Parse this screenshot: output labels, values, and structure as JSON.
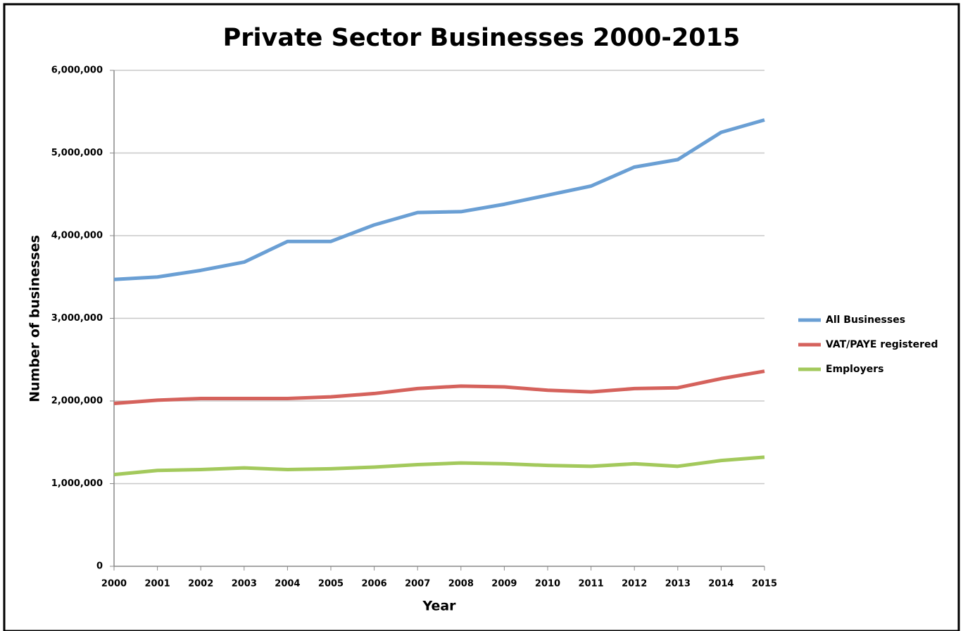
{
  "chart_data": {
    "type": "line",
    "title": "Private Sector Businesses 2000-2015",
    "x_label": "Year",
    "y_label": "Number of businesses",
    "x": [
      2000,
      2001,
      2002,
      2003,
      2004,
      2005,
      2006,
      2007,
      2008,
      2009,
      2010,
      2011,
      2012,
      2013,
      2014,
      2015
    ],
    "xlim": [
      2000,
      2015
    ],
    "xticks": [
      2000,
      2001,
      2002,
      2003,
      2004,
      2005,
      2006,
      2007,
      2008,
      2009,
      2010,
      2011,
      2012,
      2013,
      2014,
      2015
    ],
    "ylim": [
      0,
      6000000
    ],
    "yticks": [
      0,
      {
        "value": 1000000,
        "label": "1,000,000"
      },
      {
        "value": 2000000,
        "label": "2,000,000"
      },
      {
        "value": 3000000,
        "label": "3,000,000"
      },
      {
        "value": 4000000,
        "label": "4,000,000"
      },
      {
        "value": 5000000,
        "label": "5,000,000"
      },
      {
        "value": 6000000,
        "label": "6,000,000"
      }
    ],
    "grid": true,
    "legend": "right",
    "series": [
      {
        "name": "All Businesses",
        "color": "#6a9fd4",
        "values": [
          3470000,
          3500000,
          3580000,
          3680000,
          3930000,
          3930000,
          4130000,
          4280000,
          4290000,
          4380000,
          4490000,
          4600000,
          4830000,
          4920000,
          5250000,
          5400000
        ]
      },
      {
        "name": "VAT/PAYE registered",
        "color": "#d5625c",
        "values": [
          1970000,
          2010000,
          2030000,
          2030000,
          2030000,
          2050000,
          2090000,
          2150000,
          2180000,
          2170000,
          2130000,
          2110000,
          2150000,
          2160000,
          2270000,
          2360000
        ]
      },
      {
        "name": "Employers",
        "color": "#a3c95c",
        "values": [
          1110000,
          1160000,
          1170000,
          1190000,
          1170000,
          1180000,
          1200000,
          1230000,
          1250000,
          1240000,
          1220000,
          1210000,
          1240000,
          1210000,
          1280000,
          1320000
        ]
      }
    ]
  }
}
